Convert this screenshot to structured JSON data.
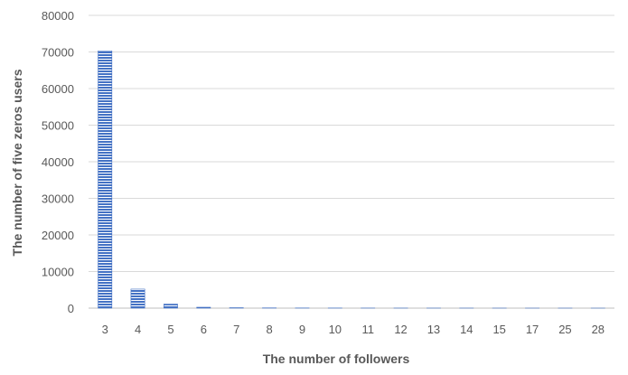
{
  "chart_data": {
    "type": "bar",
    "title": "",
    "xlabel": "The number of followers",
    "ylabel": "The number of five zeros users",
    "categories": [
      "3",
      "4",
      "5",
      "6",
      "7",
      "8",
      "9",
      "10",
      "11",
      "12",
      "13",
      "14",
      "15",
      "17",
      "25",
      "28"
    ],
    "values": [
      70300,
      5200,
      1100,
      250,
      120,
      70,
      45,
      30,
      20,
      15,
      10,
      8,
      6,
      4,
      2,
      1
    ],
    "ylim": [
      0,
      80000
    ],
    "yticks": [
      0,
      10000,
      20000,
      30000,
      40000,
      50000,
      60000,
      70000,
      80000
    ],
    "grid": true,
    "legend": "none",
    "colors": {
      "bar_fill": "#4472c4",
      "bar_stripe": "#ffffff",
      "grid": "#d9d9d9",
      "text": "#595959"
    }
  }
}
